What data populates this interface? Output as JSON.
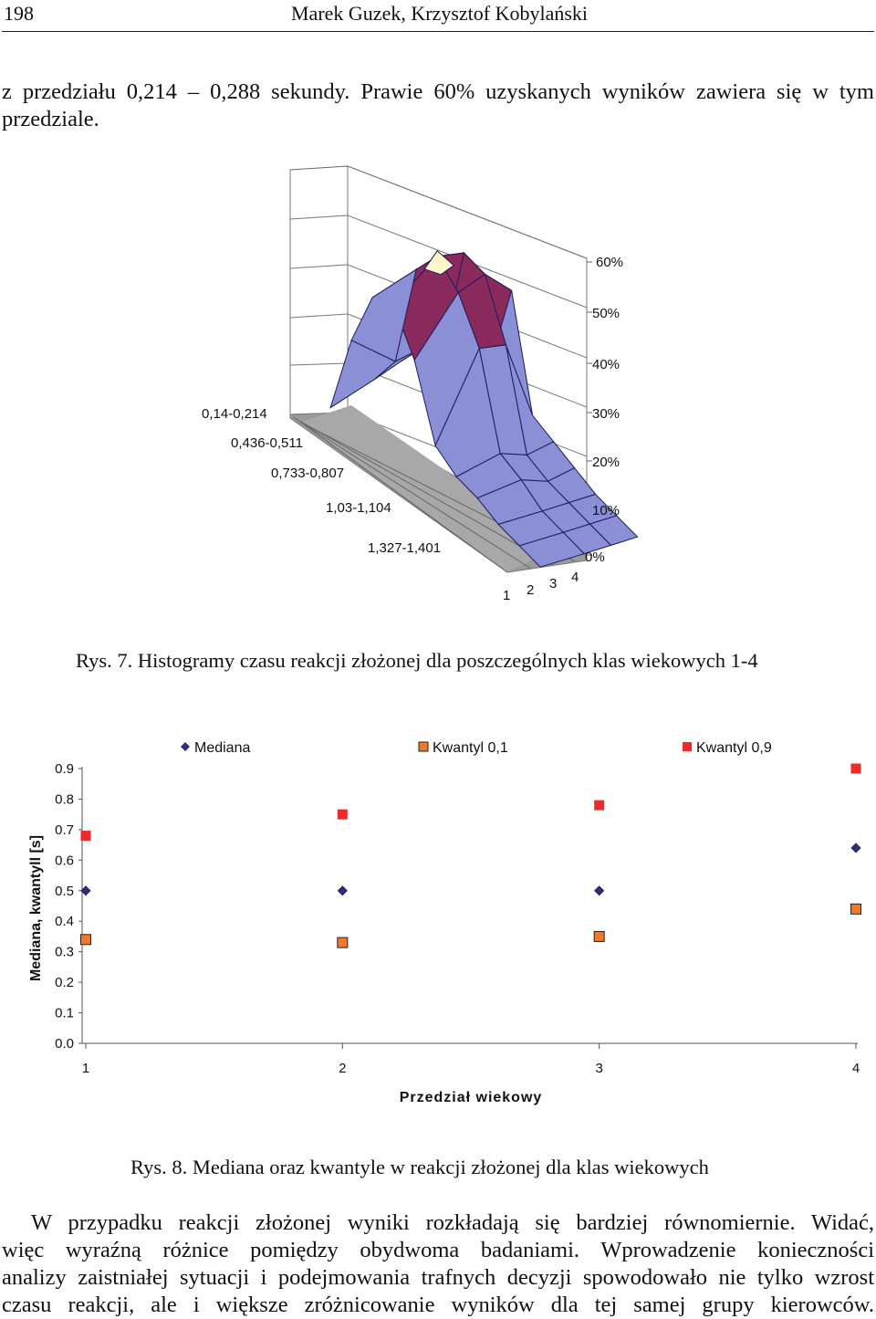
{
  "header": {
    "page_number": "198",
    "authors": "Marek Guzek, Krzysztof Kobylański"
  },
  "intro": {
    "line1": "z przedziału 0,214 – 0,288 sekundy. Prawie 60% uzyskanych wyników zawiera się w tym",
    "line2": "przedziale."
  },
  "figure7": {
    "caption": "Rys. 7. Histogramy czasu reakcji złożonej dla poszczególnych klas wiekowych 1-4",
    "z_ticks": [
      "60%",
      "50%",
      "40%",
      "30%",
      "20%",
      "10%",
      "0%"
    ],
    "interval_labels": [
      "0,14-0,214",
      "0,436-0,511",
      "0,733-0,807",
      "1,03-1,104",
      "1,327-1,401"
    ],
    "class_labels": [
      "1",
      "2",
      "3",
      "4"
    ],
    "colors": {
      "band_0_10": "#8b8fd6",
      "band_10_20": "#8b8fd6",
      "band_20_30": "#8b8fd6",
      "band_30_40": "#8a2a5c",
      "band_40_50": "#8a2a5c",
      "band_50_60": "#fdf6c8",
      "floor": "#9a9a9a",
      "mesh": "#1a1a5a"
    }
  },
  "chart_data": {
    "type": "scatter",
    "categories": [
      "1",
      "2",
      "3",
      "4"
    ],
    "xlabel": "Przedział wiekowy",
    "ylabel": "Mediana, kwantyll [s]",
    "ylim": [
      0,
      0.9
    ],
    "yticks": [
      "0.0",
      "0.1",
      "0.2",
      "0.3",
      "0.4",
      "0.5",
      "0.6",
      "0.7",
      "0.8",
      "0.9"
    ],
    "grid": false,
    "legend_position": "top",
    "series": [
      {
        "name": "Mediana",
        "marker": "diamond",
        "color": "#2e2e7a",
        "values": [
          0.5,
          0.5,
          0.5,
          0.64
        ]
      },
      {
        "name": "Kwantyl 0,1",
        "marker": "square",
        "color": "#f07a2a",
        "values": [
          0.34,
          0.33,
          0.35,
          0.44
        ]
      },
      {
        "name": "Kwantyl 0,9",
        "marker": "square",
        "color": "#ee2a2a",
        "values": [
          0.68,
          0.75,
          0.78,
          0.9
        ]
      }
    ]
  },
  "figure8": {
    "caption": "Rys. 8. Mediana oraz kwantyle w reakcji złożonej dla klas wiekowych"
  },
  "closing": {
    "line1": "W przypadku reakcji złożonej wyniki rozkładają się bardziej równomiernie. Widać,",
    "line2": "więc wyraźną różnice pomiędzy obydwoma badaniami. Wprowadzenie konieczności",
    "line3": "analizy zaistniałej sytuacji i podejmowania trafnych decyzji spowodowało nie tylko wzrost",
    "line4": "czasu reakcji, ale i większe zróżnicowanie wyników dla tej samej grupy kierowców."
  }
}
